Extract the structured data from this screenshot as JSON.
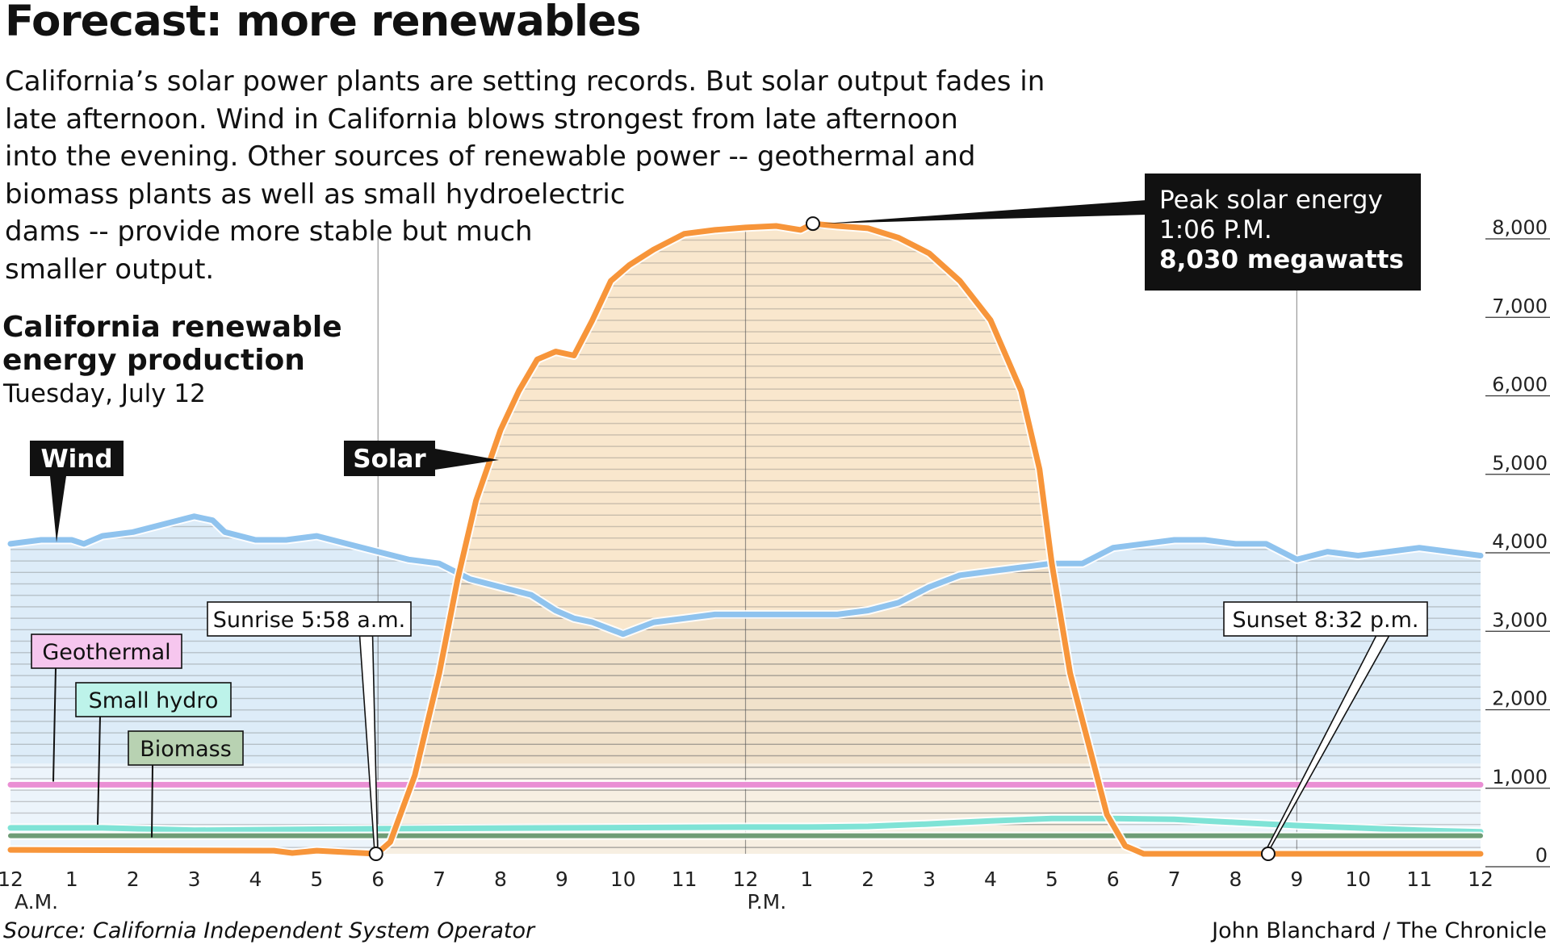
{
  "title": "Forecast: more renewables",
  "intro_lines": [
    "California’s solar power plants are setting records. But solar output fades in",
    "late afternoon. Wind in California blows strongest from late afternoon",
    "into the evening. Other sources of renewable power -- geothermal and",
    "biomass plants as well as small hydroelectric",
    "dams -- provide more stable but much",
    "smaller output."
  ],
  "source": "Source: California Independent System Operator",
  "credit": "John Blanchard / The Chronicle",
  "colors": {
    "solar": "#f7953a",
    "solar_fill": "#f7dfbc",
    "wind": "#8fc3ee",
    "wind_fill": "#d7e9f7",
    "geothermal": "#ea8fd4",
    "small_hydro": "#7fe3d6",
    "biomass": "#6f9d76",
    "label_geothermal": "#f6c6ee",
    "label_small_hydro": "#bdf3ea",
    "label_biomass": "#b8d2b2"
  },
  "chart_data": {
    "type": "line",
    "title_lines": [
      "California renewable",
      "energy production"
    ],
    "subtitle": "Tuesday, July 12",
    "xlim": [
      0,
      24
    ],
    "ylim": [
      0,
      8000
    ],
    "yticks": [
      0,
      1000,
      2000,
      3000,
      4000,
      5000,
      6000,
      7000,
      8000
    ],
    "ytick_labels": [
      "0",
      "1,000",
      "2,000",
      "3,000",
      "4,000",
      "5,000",
      "6,000",
      "7,000",
      "8,000"
    ],
    "xticks": [
      0,
      1,
      2,
      3,
      4,
      5,
      6,
      7,
      8,
      9,
      10,
      11,
      12,
      13,
      14,
      15,
      16,
      17,
      18,
      19,
      20,
      21,
      22,
      23,
      24
    ],
    "xtick_labels": [
      "12",
      "1",
      "2",
      "3",
      "4",
      "5",
      "6",
      "7",
      "8",
      "9",
      "10",
      "11",
      "12",
      "1",
      "2",
      "3",
      "4",
      "5",
      "6",
      "7",
      "8",
      "9",
      "10",
      "11",
      "12"
    ],
    "am_label": "A.M.",
    "pm_label": "P.M.",
    "series": [
      {
        "name": "Solar",
        "x": [
          0,
          4.3,
          4.6,
          5,
          5.98,
          6.2,
          6.6,
          7,
          7.3,
          7.6,
          8,
          8.3,
          8.6,
          8.9,
          9.2,
          9.5,
          9.8,
          10.1,
          10.5,
          11,
          11.5,
          12,
          12.5,
          12.9,
          13.1,
          13.5,
          14,
          14.5,
          15,
          15.5,
          16,
          16.5,
          16.8,
          17,
          17.3,
          17.6,
          17.9,
          18.2,
          18.5,
          19,
          20,
          21,
          22,
          23,
          24
        ],
        "y": [
          50,
          40,
          10,
          40,
          0,
          150,
          1000,
          2300,
          3500,
          4500,
          5400,
          5900,
          6300,
          6400,
          6350,
          6800,
          7300,
          7500,
          7700,
          7900,
          7950,
          7980,
          8000,
          7950,
          8030,
          8000,
          7970,
          7850,
          7650,
          7300,
          6800,
          5900,
          4900,
          3700,
          2300,
          1400,
          500,
          100,
          0,
          0,
          0,
          0,
          0,
          0,
          0
        ]
      },
      {
        "name": "Wind",
        "x": [
          0,
          0.5,
          1,
          1.2,
          1.5,
          2,
          2.5,
          3,
          3.3,
          3.5,
          4,
          4.5,
          5,
          5.5,
          6,
          6.5,
          7,
          7.5,
          8,
          8.5,
          8.9,
          9.2,
          9.5,
          10,
          10.5,
          11,
          11.5,
          12,
          12.5,
          13,
          13.5,
          14,
          14.5,
          15,
          15.5,
          16,
          16.5,
          17,
          17.5,
          18,
          18.5,
          19,
          19.5,
          20,
          20.5,
          21,
          21.5,
          22,
          22.5,
          23,
          23.5,
          24
        ],
        "y": [
          3950,
          4000,
          4000,
          3950,
          4050,
          4100,
          4200,
          4300,
          4250,
          4100,
          4000,
          4000,
          4050,
          3950,
          3850,
          3750,
          3700,
          3500,
          3400,
          3300,
          3100,
          3000,
          2950,
          2800,
          2950,
          3000,
          3050,
          3050,
          3050,
          3050,
          3050,
          3100,
          3200,
          3400,
          3550,
          3600,
          3650,
          3700,
          3700,
          3900,
          3950,
          4000,
          4000,
          3950,
          3950,
          3750,
          3850,
          3800,
          3850,
          3900,
          3850,
          3800
        ]
      },
      {
        "name": "Geothermal",
        "x": [
          0,
          24
        ],
        "y": [
          880,
          880
        ]
      },
      {
        "name": "Small hydro",
        "x": [
          0,
          1.5,
          3,
          6,
          9,
          12,
          13,
          14,
          15,
          16,
          17,
          18,
          19,
          20,
          21,
          22,
          23,
          24
        ],
        "y": [
          330,
          330,
          300,
          320,
          330,
          340,
          340,
          350,
          380,
          420,
          450,
          450,
          440,
          400,
          360,
          330,
          300,
          280
        ]
      },
      {
        "name": "Biomass",
        "x": [
          0,
          24
        ],
        "y": [
          230,
          230
        ]
      }
    ],
    "annotations": {
      "peak": {
        "x": 13.1,
        "y": 8030,
        "lines": [
          "Peak solar energy",
          "1:06 P.M.",
          "8,030 megawatts"
        ]
      },
      "sunrise": {
        "x": 5.967,
        "label": "Sunrise 5:58 a.m."
      },
      "sunset": {
        "x": 20.533,
        "label": "Sunset 8:32 p.m."
      },
      "series_labels": {
        "wind": "Wind",
        "solar": "Solar",
        "geothermal": "Geothermal",
        "small_hydro": "Small hydro",
        "biomass": "Biomass"
      }
    }
  }
}
